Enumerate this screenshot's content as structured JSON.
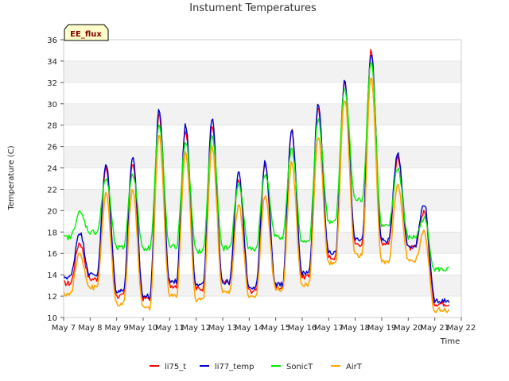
{
  "chart_data": {
    "type": "line",
    "title": "Instument Temperatures",
    "xlabel": "Time",
    "ylabel": "Temperature (C)",
    "badge": "EE_flux",
    "ylim": [
      10,
      36
    ],
    "yticks": [
      10,
      12,
      14,
      16,
      18,
      20,
      22,
      24,
      26,
      28,
      30,
      32,
      34,
      36
    ],
    "xlim": [
      0,
      15
    ],
    "xticks": [
      0,
      1,
      2,
      3,
      4,
      5,
      6,
      7,
      8,
      9,
      10,
      11,
      12,
      13,
      14,
      15
    ],
    "xtick_labels": [
      "May 7",
      "May 8",
      "May 9",
      "May 10",
      "May 11",
      "May 12",
      "May 13",
      "May 14",
      "May 15",
      "May 16",
      "May 17",
      "May 18",
      "May 19",
      "May 20",
      "May 21",
      "May 22"
    ],
    "grid": "horizontal banded",
    "legend_position": "bottom",
    "series": [
      {
        "name": "li75_t",
        "color": "#ff0000",
        "width": 1.4,
        "min": [
          13.2,
          13.6,
          12.0,
          11.8,
          13.0,
          12.7,
          13.3,
          12.5,
          12.8,
          13.8,
          15.6,
          16.9,
          17.0,
          16.5,
          11.3,
          12.0
        ],
        "max": [
          17.0,
          24.0,
          24.5,
          29.0,
          27.5,
          28.0,
          23.0,
          24.2,
          27.5,
          29.5,
          32.0,
          35.0,
          25.0,
          20.0
        ]
      },
      {
        "name": "li77_temp",
        "color": "#0000cc",
        "width": 1.4,
        "min": [
          13.8,
          14.0,
          12.5,
          12.0,
          13.4,
          13.0,
          13.3,
          12.9,
          13.1,
          14.2,
          16.0,
          17.2,
          17.2,
          16.7,
          11.6,
          12.5
        ],
        "max": [
          18.0,
          24.3,
          25.0,
          29.5,
          28.0,
          28.5,
          23.5,
          24.5,
          27.5,
          30.0,
          32.2,
          34.8,
          25.5,
          20.7
        ]
      },
      {
        "name": "SonicT",
        "color": "#00ee00",
        "width": 1.4,
        "min": [
          17.5,
          18.0,
          16.5,
          16.5,
          16.6,
          16.2,
          16.5,
          16.4,
          17.5,
          17.0,
          19.0,
          21.0,
          18.5,
          17.5,
          14.5,
          15.4
        ],
        "max": [
          19.8,
          23.0,
          23.5,
          28.0,
          26.5,
          27.0,
          22.5,
          23.5,
          25.8,
          28.5,
          31.5,
          34.0,
          24.0,
          19.3
        ]
      },
      {
        "name": "AirT",
        "color": "#ffa500",
        "width": 1.6,
        "min": [
          12.2,
          12.8,
          11.2,
          10.9,
          12.0,
          11.6,
          12.4,
          12.0,
          12.7,
          13.0,
          15.1,
          15.8,
          15.2,
          15.3,
          10.7,
          11.1
        ],
        "max": [
          16.0,
          21.5,
          22.0,
          27.0,
          25.5,
          26.0,
          20.5,
          21.5,
          24.5,
          27.0,
          30.5,
          32.5,
          22.5,
          18.0
        ]
      }
    ]
  }
}
